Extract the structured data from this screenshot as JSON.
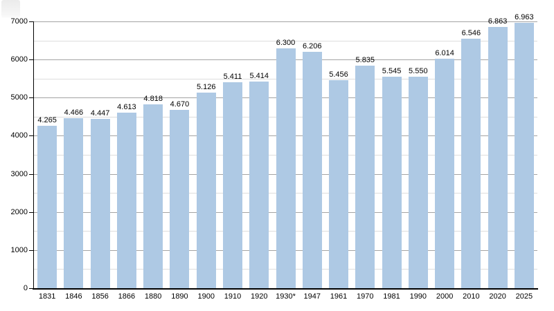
{
  "chart_data": {
    "type": "bar",
    "title": "",
    "xlabel": "",
    "ylabel": "",
    "categories": [
      "1831",
      "1846",
      "1856",
      "1866",
      "1880",
      "1890",
      "1900",
      "1910",
      "1920",
      "1930*",
      "1947",
      "1961",
      "1970",
      "1981",
      "1990",
      "2000",
      "2010",
      "2020",
      "2025"
    ],
    "values": [
      4265,
      4466,
      4447,
      4613,
      4818,
      4670,
      5126,
      5411,
      5414,
      6300,
      6206,
      5456,
      5835,
      5545,
      5550,
      6014,
      6546,
      6863,
      6963
    ],
    "value_labels": [
      "4.265",
      "4.466",
      "4.447",
      "4.613",
      "4.818",
      "4.670",
      "5.126",
      "5.411",
      "5.414",
      "6.300",
      "6.206",
      "5.456",
      "5.835",
      "5.545",
      "5.550",
      "6.014",
      "6.546",
      "6.863",
      "6.963"
    ],
    "ylim": [
      0,
      7000
    ],
    "yticks_major": [
      0,
      1000,
      2000,
      3000,
      4000,
      5000,
      6000,
      7000
    ],
    "ytick_major_labels": [
      "0",
      "1000",
      "2000",
      "3000",
      "4000",
      "5000",
      "6000",
      "7000"
    ],
    "ytick_minor_step": 500,
    "grid": true,
    "legend": "none",
    "colors": {
      "bar": "#aec9e4",
      "axis": "#000000",
      "grid_major": "#a3a3a3",
      "grid_minor": "#dddddd",
      "text": "#000000"
    }
  }
}
